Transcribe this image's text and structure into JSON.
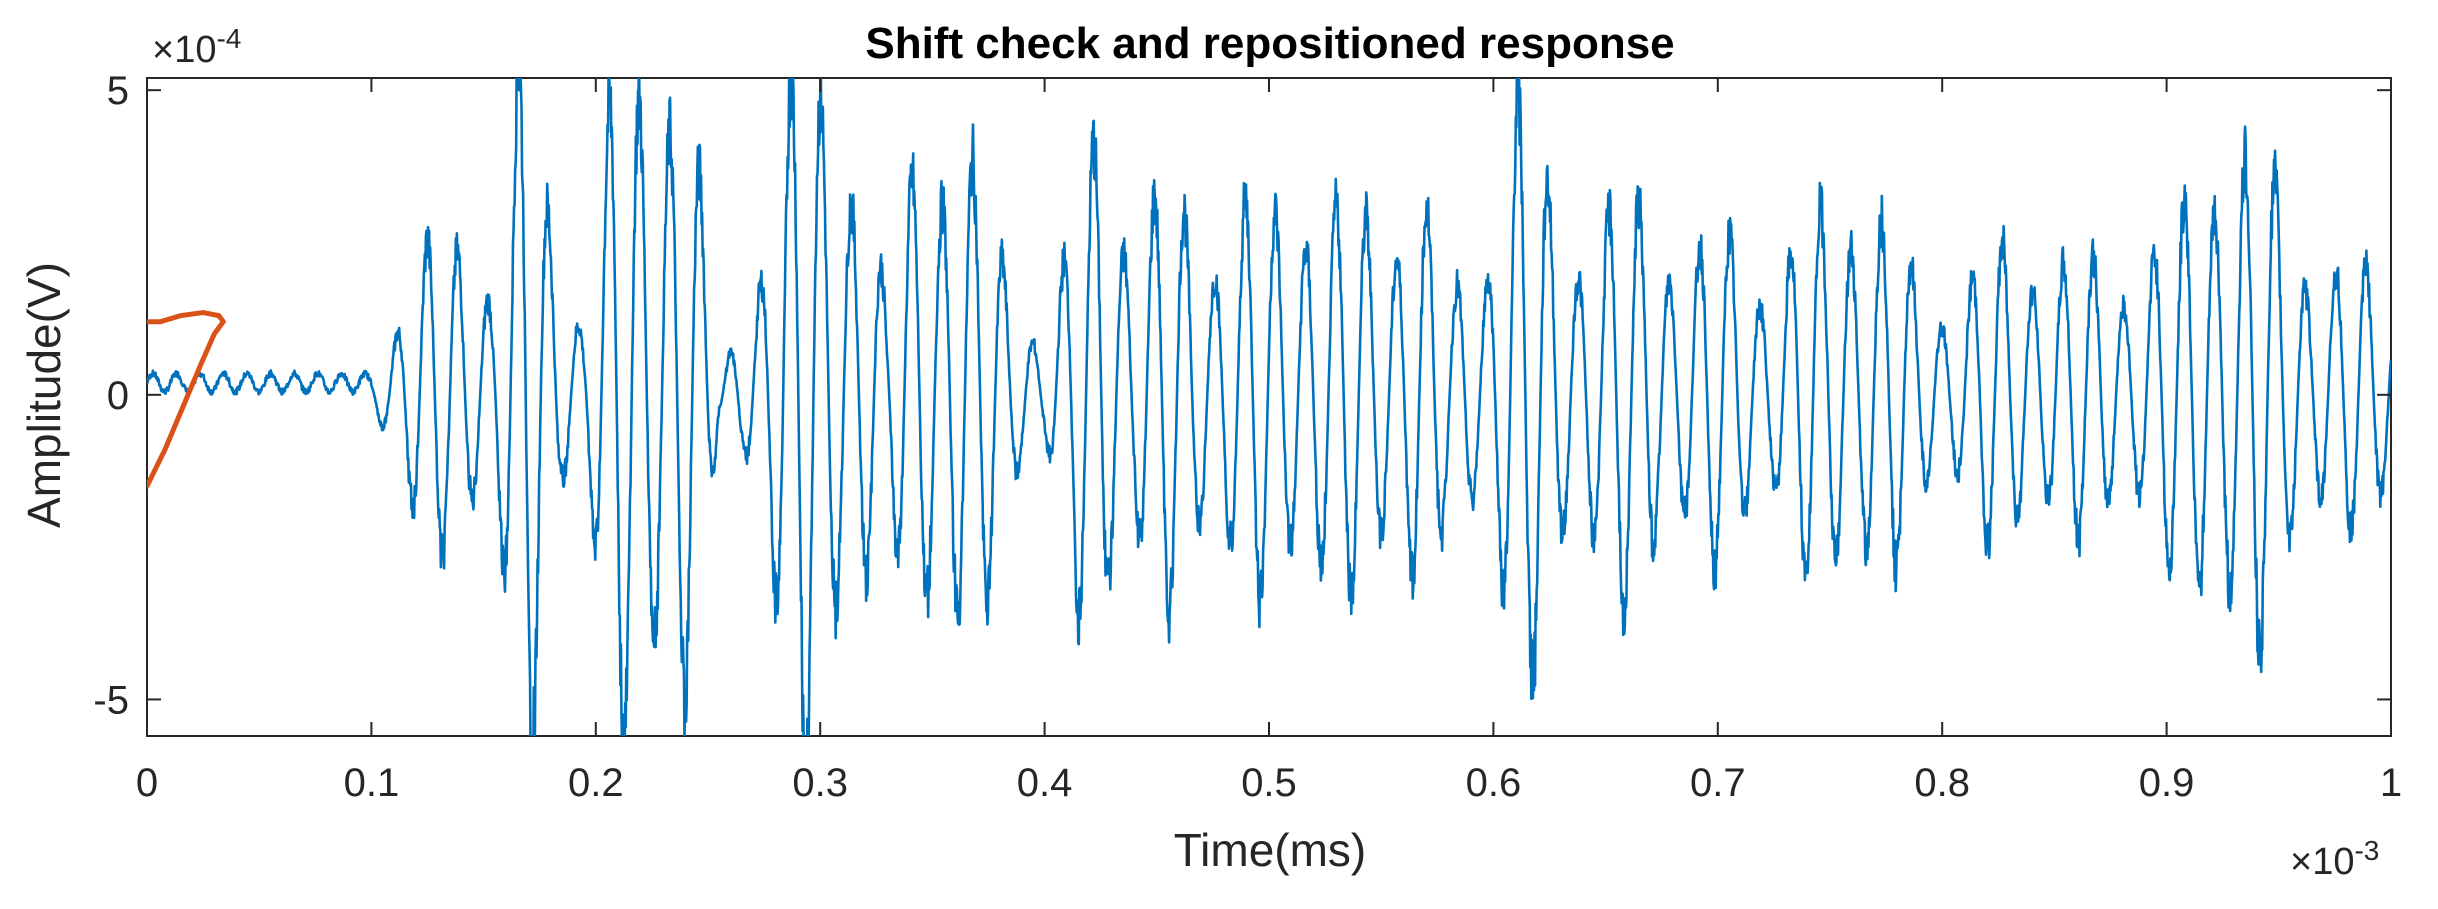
{
  "chart_data": {
    "type": "line",
    "title": "Shift check and repositioned response",
    "xlabel": "Time(ms)",
    "ylabel": "Amplitude(V)",
    "x_multiplier": "×10",
    "x_exponent": "-3",
    "y_multiplier": "×10",
    "y_exponent": "-4",
    "xlim": [
      0,
      1
    ],
    "ylim": [
      -5.6,
      5.2
    ],
    "xticks": [
      0,
      0.1,
      0.2,
      0.3,
      0.4,
      0.5,
      0.6,
      0.7,
      0.8,
      0.9,
      1
    ],
    "xtick_labels": [
      "0",
      "0.1",
      "0.2",
      "0.3",
      "0.4",
      "0.5",
      "0.6",
      "0.7",
      "0.8",
      "0.9",
      "1"
    ],
    "yticks": [
      5,
      0,
      -5
    ],
    "ytick_labels": [
      "5",
      "0",
      "-5"
    ],
    "grid": false,
    "series": [
      {
        "color": "#0072BD",
        "oscillation_periods": 0.0135,
        "envelope": [
          [
            0.0,
            0.15
          ],
          [
            0.095,
            0.2
          ],
          [
            0.1,
            0.5
          ],
          [
            0.12,
            2.2
          ],
          [
            0.14,
            3.6
          ],
          [
            0.155,
            2.0
          ],
          [
            0.17,
            7.0
          ],
          [
            0.185,
            2.5
          ],
          [
            0.195,
            1.5
          ],
          [
            0.21,
            6.0
          ],
          [
            0.225,
            7.5
          ],
          [
            0.24,
            6.0
          ],
          [
            0.255,
            0.4
          ],
          [
            0.265,
            1.5
          ],
          [
            0.28,
            4.0
          ],
          [
            0.295,
            7.0
          ],
          [
            0.31,
            6.0
          ],
          [
            0.33,
            1.5
          ],
          [
            0.345,
            6.0
          ],
          [
            0.365,
            4.2
          ],
          [
            0.38,
            3.0
          ],
          [
            0.4,
            0.9
          ],
          [
            0.41,
            2.5
          ],
          [
            0.425,
            6.0
          ],
          [
            0.44,
            3.0
          ],
          [
            0.46,
            3.8
          ],
          [
            0.48,
            3.2
          ],
          [
            0.5,
            3.5
          ],
          [
            0.515,
            4.3
          ],
          [
            0.53,
            3.3
          ],
          [
            0.545,
            3.5
          ],
          [
            0.565,
            4.2
          ],
          [
            0.58,
            1.8
          ],
          [
            0.595,
            3.0
          ],
          [
            0.61,
            5.5
          ],
          [
            0.63,
            3.5
          ],
          [
            0.65,
            3.3
          ],
          [
            0.67,
            3.7
          ],
          [
            0.69,
            2.7
          ],
          [
            0.71,
            3.0
          ],
          [
            0.725,
            2.3
          ],
          [
            0.74,
            3.0
          ],
          [
            0.76,
            4.3
          ],
          [
            0.775,
            3.2
          ],
          [
            0.79,
            2.0
          ],
          [
            0.805,
            2.0
          ],
          [
            0.82,
            2.5
          ],
          [
            0.84,
            3.0
          ],
          [
            0.86,
            2.4
          ],
          [
            0.875,
            2.4
          ],
          [
            0.89,
            2.8
          ],
          [
            0.905,
            3.0
          ],
          [
            0.925,
            5.5
          ],
          [
            0.94,
            4.5
          ],
          [
            0.955,
            3.0
          ],
          [
            0.97,
            2.8
          ],
          [
            0.985,
            2.2
          ],
          [
            1.0,
            2.0
          ]
        ]
      },
      {
        "color": "#D95319",
        "points": [
          [
            0.0,
            -1.5
          ],
          [
            0.008,
            -0.9
          ],
          [
            0.016,
            -0.2
          ],
          [
            0.024,
            0.5
          ],
          [
            0.03,
            1.0
          ],
          [
            0.034,
            1.2
          ],
          [
            0.032,
            1.3
          ],
          [
            0.025,
            1.35
          ],
          [
            0.015,
            1.3
          ],
          [
            0.006,
            1.2
          ],
          [
            0.0,
            1.2
          ]
        ]
      }
    ]
  }
}
